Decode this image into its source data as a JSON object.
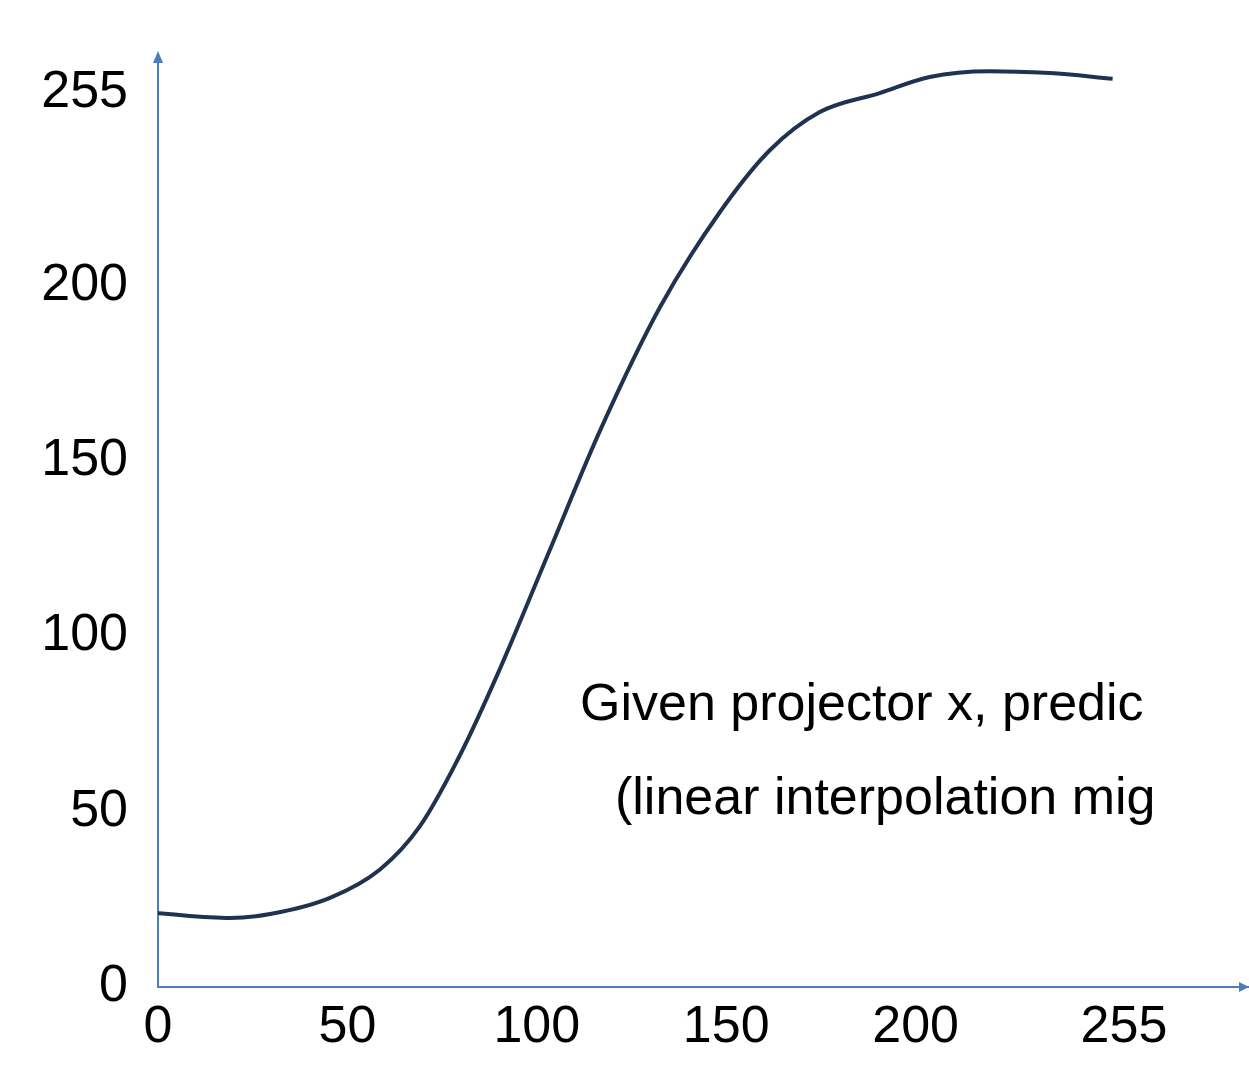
{
  "chart_data": {
    "type": "line",
    "x": [
      0,
      19,
      29.6,
      45.4,
      58.6,
      69.1,
      79.7,
      90.2,
      103.4,
      116.6,
      132.5,
      148.3,
      161.5,
      174.7,
      190.5,
      203.7,
      219.5,
      235.4,
      252
    ],
    "series": [
      {
        "color": "#1f3250",
        "values": [
          20.9,
          19.6,
          20.7,
          25.3,
          33.4,
          45.7,
          66,
          90.5,
          124.5,
          158.4,
          193.8,
          220.9,
          238.6,
          249.5,
          254.9,
          259.5,
          261.1,
          260.6,
          259
        ]
      }
    ],
    "xlim": [
      0,
      288
    ],
    "xticks": [
      0,
      50,
      100,
      150,
      200,
      255
    ],
    "ylim": [
      0,
      264
    ],
    "yticks": [
      0,
      50,
      100,
      150,
      200,
      255
    ],
    "grid": false,
    "legend": false,
    "marker": "none",
    "line_style": "solid",
    "annotations": [
      "Given projector x, predic",
      "(linear interpolation mig"
    ]
  }
}
